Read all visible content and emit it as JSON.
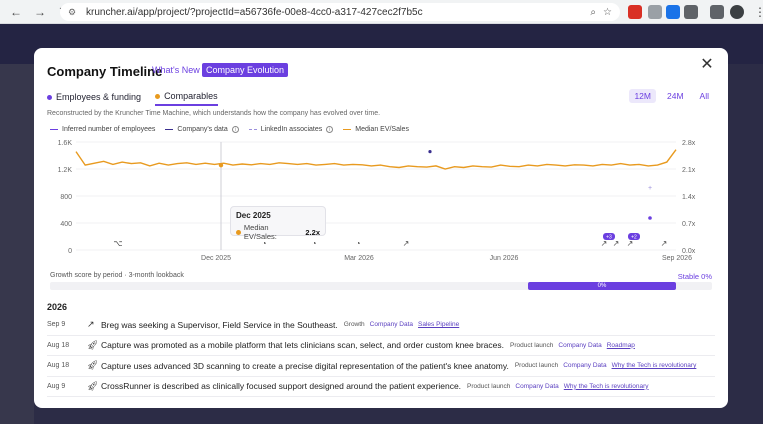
{
  "browser": {
    "url": "kruncher.ai/app/project/?projectId=a56736fe-00e8-4cc0-a317-427cec2f7b5c"
  },
  "modal": {
    "title": "Company Timeline",
    "tab_whats_new": "What's New",
    "tab_company_evolution": "Company Evolution",
    "close_label": "✕",
    "sub_tabs": [
      {
        "label": "Employees & funding",
        "color": "#6b3fe0"
      },
      {
        "label": "Comparables",
        "color": "#e89a1f"
      }
    ],
    "range_tabs": [
      "12M",
      "24M",
      "All"
    ],
    "active_range": "12M",
    "description": "Reconstructed by the Kruncher Time Machine, which understands how the company has evolved over time.",
    "legend": [
      "Inferred number of employees",
      "Company's data",
      "LinkedIn associates",
      "Median EV/Sales"
    ],
    "tooltip": {
      "title": "Dec 2025",
      "label": "Median EV/Sales:",
      "value": "2.2x"
    },
    "growth": {
      "label": "Growth score by period · 3-month lookback",
      "stable_label": "Stable 0%",
      "bar_value": "0%"
    },
    "year": "2026",
    "events": [
      {
        "date": "Sep 9",
        "icon": "trend-up-icon",
        "text": "Breg was seeking a Supervisor, Field Service in the Southeast.",
        "category": "Growth",
        "link1": "Company Data",
        "link2": "Sales Pipeline"
      },
      {
        "date": "Aug 18",
        "icon": "rocket-icon",
        "text": "Capture was promoted as a mobile platform that lets clinicians scan, select, and order custom knee braces.",
        "category": "Product launch",
        "link1": "Company Data",
        "link2": "Roadmap"
      },
      {
        "date": "Aug 18",
        "icon": "rocket-icon",
        "text": "Capture uses advanced 3D scanning to create a precise digital representation of the patient's knee anatomy.",
        "category": "Product launch",
        "link1": "Company Data",
        "link2": "Why the Tech is revolutionary"
      },
      {
        "date": "Aug 9",
        "icon": "rocket-icon",
        "text": "CrossRunner is described as clinically focused support designed around the patient experience.",
        "category": "Product launch",
        "link1": "Company Data",
        "link2": "Why the Tech is revolutionary"
      }
    ]
  },
  "chart_data": {
    "type": "line",
    "x_tick_labels": [
      "Dec 2025",
      "Mar 2026",
      "Jun 2026",
      "Sep 2026"
    ],
    "y_left_ticks": [
      "0",
      "400",
      "800",
      "1.2K",
      "1.6K"
    ],
    "y_right_ticks": [
      "0.0x",
      "0.7x",
      "1.4x",
      "2.1x",
      "2.8x"
    ],
    "series": [
      {
        "name": "Median EV/Sales",
        "color": "#e89a1f",
        "axis": "right",
        "values": [
          2.55,
          2.2,
          2.25,
          2.3,
          2.22,
          2.28,
          2.24,
          2.26,
          2.18,
          2.25,
          2.2,
          2.24,
          2.26,
          2.22,
          2.25,
          2.22,
          2.25,
          2.2,
          2.23,
          2.21,
          2.24,
          2.22,
          2.26,
          2.24,
          2.22,
          2.24,
          2.2,
          2.22,
          2.24,
          2.2,
          2.22,
          2.21,
          2.18,
          2.2,
          2.16,
          2.14,
          2.18,
          2.16,
          2.15,
          2.18,
          2.1,
          2.16,
          2.14,
          2.18,
          2.16,
          2.15,
          2.2,
          2.17,
          2.16,
          2.2,
          2.18,
          2.22,
          2.2,
          2.18,
          2.21,
          2.2,
          2.18,
          2.22,
          2.2,
          2.24,
          2.2,
          2.22,
          2.18,
          2.2,
          2.28,
          2.6
        ]
      }
    ],
    "company_points": [
      {
        "x_fraction": 0.51,
        "y": 1.1
      }
    ],
    "linkedin_points": [
      {
        "x_fraction": 0.9,
        "y": 1.4
      },
      {
        "x_fraction": 0.9,
        "y": 0.83
      }
    ],
    "yrange_left": [
      0,
      1600
    ],
    "yrange_right": [
      0,
      2.8
    ],
    "colors": {
      "employees": "#6b3fe0",
      "company_data": "#3a2f8f",
      "linkedin": "#9b8fdc",
      "ev_sales": "#e89a1f"
    }
  }
}
